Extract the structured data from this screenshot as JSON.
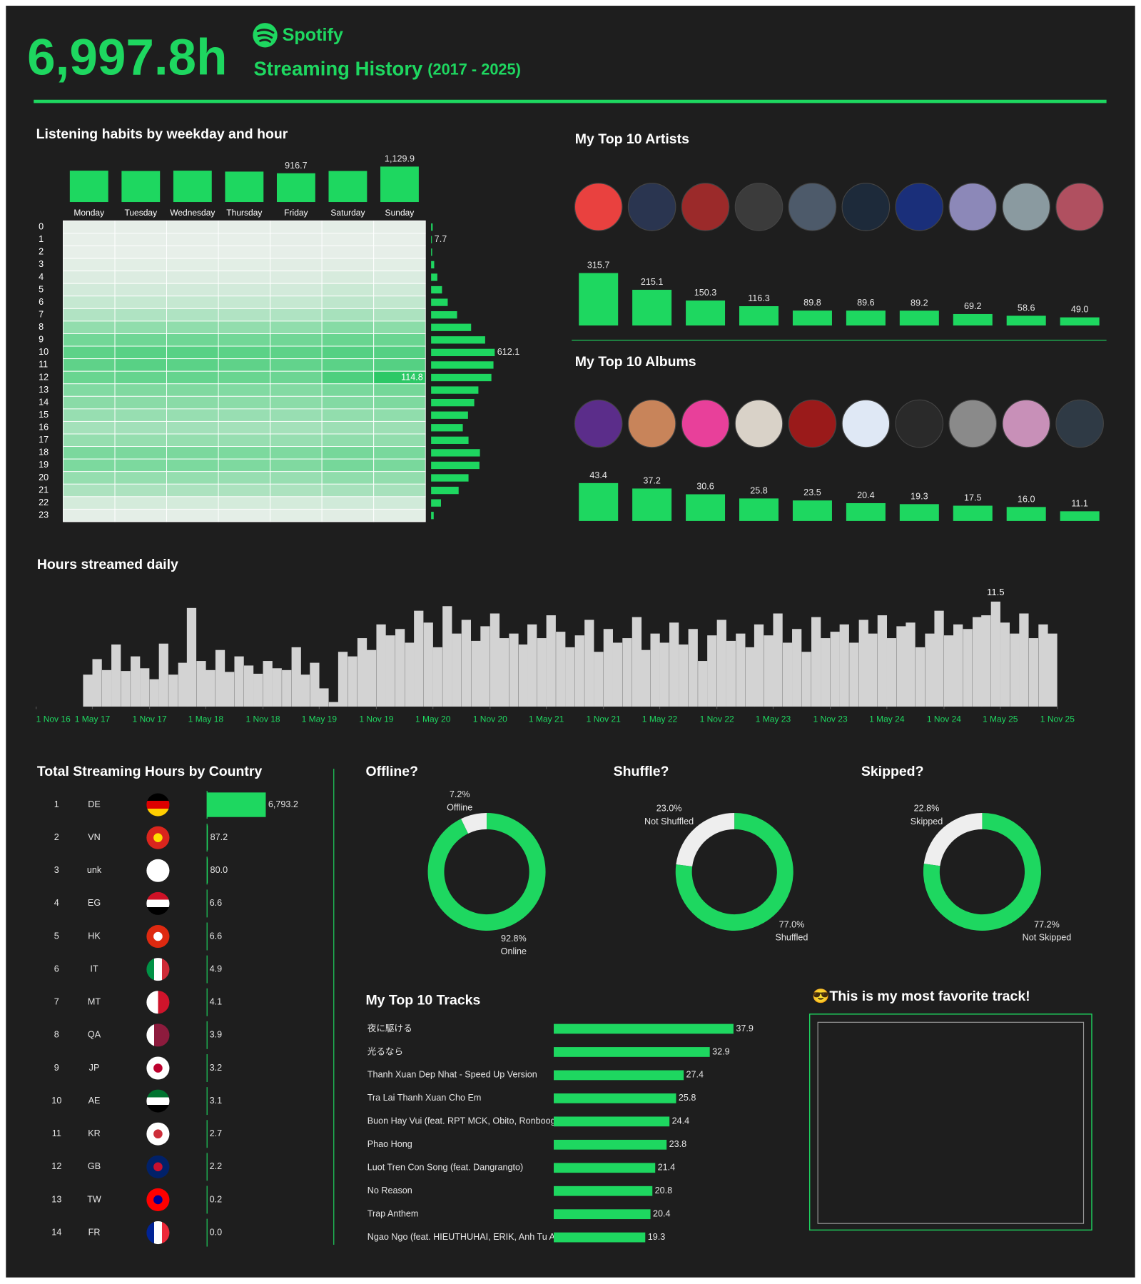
{
  "header": {
    "total": "6,997.8h",
    "brand": "Spotify",
    "title": "Streaming History",
    "period": "(2017 - 2025)"
  },
  "favorite": {
    "title": "😎This is my most favorite track!"
  },
  "chart_data": [
    {
      "type": "bar",
      "title": "Listening habits by weekday and hour",
      "categories": [
        "Monday",
        "Tuesday",
        "Wednesday",
        "Thursday",
        "Friday",
        "Saturday",
        "Sunday"
      ],
      "values": [
        1000,
        990,
        1000,
        970,
        916.7,
        990,
        1129.9
      ],
      "value_labels": [
        null,
        null,
        null,
        null,
        "916.7",
        null,
        "1,129.9"
      ],
      "ylim": [
        0,
        1200
      ],
      "color": "#1ed760"
    },
    {
      "type": "heatmap",
      "rows": [
        0,
        1,
        2,
        3,
        4,
        5,
        6,
        7,
        8,
        9,
        10,
        11,
        12,
        13,
        14,
        15,
        16,
        17,
        18,
        19,
        20,
        21,
        22,
        23
      ],
      "values": [
        [
          2,
          2,
          2,
          2,
          2,
          3,
          2
        ],
        [
          1,
          1,
          1,
          1,
          1.7,
          1,
          1
        ],
        [
          1,
          1,
          1,
          1,
          2,
          2,
          2
        ],
        [
          4,
          4,
          4,
          4,
          5,
          5,
          4
        ],
        [
          8,
          8,
          8,
          8,
          8,
          11,
          9
        ],
        [
          14,
          14,
          14,
          14,
          14,
          19,
          16
        ],
        [
          22,
          22,
          22,
          22,
          22,
          26,
          24
        ],
        [
          34,
          35,
          35,
          34,
          35,
          40,
          37
        ],
        [
          53,
          54,
          54,
          53,
          54,
          60,
          57
        ],
        [
          72,
          74,
          74,
          72,
          73,
          78,
          77
        ],
        [
          85,
          88,
          88,
          86,
          85,
          90,
          90
        ],
        [
          84,
          88,
          86,
          84,
          82,
          86,
          90
        ],
        [
          78,
          80,
          80,
          78,
          76,
          94,
          114.8
        ],
        [
          63,
          64,
          64,
          63,
          62,
          68,
          71
        ],
        [
          58,
          58,
          58,
          57,
          57,
          62,
          65
        ],
        [
          50,
          50,
          50,
          49,
          49,
          53,
          54
        ],
        [
          42,
          43,
          43,
          42,
          42,
          46,
          47
        ],
        [
          51,
          51,
          51,
          50,
          50,
          54,
          53
        ],
        [
          67,
          67,
          67,
          66,
          65,
          70,
          68
        ],
        [
          66,
          66,
          66,
          65,
          64,
          70,
          68
        ],
        [
          51,
          51,
          51,
          50,
          50,
          54,
          53
        ],
        [
          37,
          37,
          37,
          37,
          37,
          40,
          40
        ],
        [
          13,
          13,
          13,
          13,
          13,
          15,
          15
        ],
        [
          3,
          3,
          3,
          3,
          4,
          5,
          4
        ]
      ],
      "value_labels": [
        [
          null,
          null,
          null,
          null,
          null,
          null,
          null
        ],
        [
          null,
          null,
          null,
          null,
          null,
          null,
          null
        ],
        [
          null,
          null,
          null,
          null,
          null,
          null,
          null
        ],
        [
          null,
          null,
          null,
          null,
          null,
          null,
          null
        ],
        [
          null,
          null,
          null,
          null,
          null,
          null,
          null
        ],
        [
          null,
          null,
          null,
          null,
          null,
          null,
          null
        ],
        [
          null,
          null,
          null,
          null,
          null,
          null,
          null
        ],
        [
          null,
          null,
          null,
          null,
          null,
          null,
          null
        ],
        [
          null,
          null,
          null,
          null,
          null,
          null,
          null
        ],
        [
          null,
          null,
          null,
          null,
          null,
          null,
          null
        ],
        [
          null,
          null,
          null,
          null,
          null,
          null,
          null
        ],
        [
          null,
          null,
          null,
          null,
          null,
          null,
          null
        ],
        [
          null,
          null,
          null,
          null,
          null,
          null,
          "114.8"
        ],
        [
          null,
          null,
          null,
          null,
          null,
          null,
          null
        ],
        [
          null,
          null,
          null,
          null,
          null,
          null,
          null
        ],
        [
          null,
          null,
          null,
          null,
          null,
          null,
          null
        ],
        [
          null,
          null,
          null,
          null,
          null,
          null,
          null
        ],
        [
          null,
          null,
          null,
          null,
          null,
          null,
          null
        ],
        [
          null,
          null,
          null,
          null,
          null,
          null,
          null
        ],
        [
          null,
          null,
          null,
          null,
          null,
          null,
          null
        ],
        [
          null,
          null,
          null,
          null,
          null,
          null,
          null
        ],
        [
          null,
          null,
          null,
          null,
          null,
          null,
          null
        ],
        [
          null,
          null,
          null,
          null,
          null,
          null,
          null
        ],
        [
          null,
          null,
          null,
          null,
          null,
          null,
          null
        ]
      ],
      "colors": [
        "#e9efea",
        "#2cc866"
      ]
    },
    {
      "type": "barh",
      "values": [
        15,
        7.7,
        10,
        30,
        60,
        105,
        160,
        250,
        385,
        520,
        612.1,
        600,
        580,
        455,
        415,
        355,
        305,
        360,
        470,
        465,
        360,
        265,
        95,
        25
      ],
      "value_labels": [
        null,
        "7.7",
        null,
        null,
        null,
        null,
        null,
        null,
        null,
        null,
        "612.1",
        null,
        null,
        null,
        null,
        null,
        null,
        null,
        null,
        null,
        null,
        null,
        null,
        null
      ],
      "xlim": [
        0,
        700
      ],
      "color": "#1ed760"
    },
    {
      "type": "bar",
      "title": "My Top 10 Artists",
      "values": [
        315.7,
        215.1,
        150.3,
        116.3,
        89.8,
        89.6,
        89.2,
        69.2,
        58.6,
        49
      ],
      "value_labels": [
        "315.7",
        "215.1",
        "150.3",
        "116.3",
        "89.8",
        "89.6",
        "89.2",
        "69.2",
        "58.6",
        "49.0"
      ],
      "ylim": [
        0,
        330
      ],
      "color": "#1ed760"
    },
    {
      "type": "bar",
      "title": "My Top 10 Albums",
      "values": [
        43.4,
        37.2,
        30.6,
        25.8,
        23.5,
        20.4,
        19.3,
        17.5,
        16,
        11.1
      ],
      "value_labels": [
        "43.4",
        "37.2",
        "30.6",
        "25.8",
        "23.5",
        "20.4",
        "19.3",
        "17.5",
        "16.0",
        "11.1"
      ],
      "ylim": [
        0,
        45
      ],
      "color": "#1ed760"
    },
    {
      "type": "column",
      "title": "Hours streamed daily",
      "x": [
        "2017-04-01",
        "2017-05-01",
        "2017-06-01",
        "2017-07-01",
        "2017-08-01",
        "2017-09-01",
        "2017-10-01",
        "2017-11-01",
        "2017-12-01",
        "2018-01-01",
        "2018-02-01",
        "2018-03-01",
        "2018-04-01",
        "2018-05-01",
        "2018-06-01",
        "2018-07-01",
        "2018-08-01",
        "2018-09-01",
        "2018-10-01",
        "2018-11-01",
        "2018-12-01",
        "2019-01-01",
        "2019-02-01",
        "2019-03-01",
        "2019-04-01",
        "2019-05-01",
        "2019-06-01",
        "2019-07-01",
        "2019-08-01",
        "2019-09-01",
        "2019-10-01",
        "2019-11-01",
        "2019-12-01",
        "2020-01-01",
        "2020-02-01",
        "2020-03-01",
        "2020-04-01",
        "2020-05-01",
        "2020-06-01",
        "2020-07-01",
        "2020-08-01",
        "2020-09-01",
        "2020-10-01",
        "2020-11-01",
        "2020-12-01",
        "2021-01-01",
        "2021-02-01",
        "2021-03-01",
        "2021-04-01",
        "2021-05-01",
        "2021-06-01",
        "2021-07-01",
        "2021-08-01",
        "2021-09-01",
        "2021-10-01",
        "2021-11-01",
        "2021-12-01",
        "2022-01-01",
        "2022-02-01",
        "2022-03-01",
        "2022-04-01",
        "2022-05-01",
        "2022-06-01",
        "2022-07-01",
        "2022-08-01",
        "2022-09-01",
        "2022-10-01",
        "2022-11-01",
        "2022-12-01",
        "2023-01-01",
        "2023-02-01",
        "2023-03-01",
        "2023-04-01",
        "2023-05-01",
        "2023-06-01",
        "2023-07-01",
        "2023-08-01",
        "2023-09-01",
        "2023-10-01",
        "2023-11-01",
        "2023-12-01",
        "2024-01-01",
        "2024-02-01",
        "2024-03-01",
        "2024-04-01",
        "2024-05-01",
        "2024-06-01",
        "2024-07-01",
        "2024-08-01",
        "2024-09-01",
        "2024-10-01",
        "2024-11-01",
        "2024-12-01",
        "2025-01-01",
        "2025-02-01",
        "2025-03-01",
        "2025-04-01",
        "2025-05-01",
        "2025-06-01",
        "2025-07-01",
        "2025-08-01",
        "2025-09-01",
        "2025-10-01"
      ],
      "values": [
        3.5,
        5.2,
        4.0,
        6.8,
        3.9,
        5.5,
        4.2,
        3.0,
        6.9,
        3.5,
        4.8,
        10.8,
        5.0,
        4.0,
        6.2,
        3.8,
        5.5,
        4.5,
        3.6,
        5.0,
        4.2,
        4.0,
        6.5,
        3.5,
        4.8,
        2.0,
        0.5,
        6.0,
        5.5,
        7.5,
        6.2,
        9.0,
        7.8,
        8.5,
        7.0,
        10.5,
        9.2,
        6.5,
        11.0,
        8.0,
        9.5,
        7.2,
        8.8,
        10.2,
        7.5,
        8.0,
        6.8,
        9.0,
        7.5,
        10.0,
        8.2,
        6.5,
        7.8,
        9.5,
        6.0,
        8.5,
        7.0,
        7.5,
        9.8,
        6.2,
        8.0,
        7.0,
        9.2,
        6.8,
        8.5,
        5.0,
        7.8,
        9.5,
        7.2,
        8.0,
        6.5,
        9.0,
        7.8,
        10.2,
        7.0,
        8.5,
        6.0,
        9.8,
        7.5,
        8.2,
        9.0,
        7.0,
        9.5,
        8.0,
        10.0,
        7.5,
        8.8,
        9.2,
        6.5,
        8.0,
        10.5,
        7.8,
        9.0,
        8.5,
        9.8,
        10.0,
        11.5,
        9.2,
        8.0,
        10.2,
        7.5,
        9.0,
        8.0
      ],
      "xlim": [
        "2016-11-01",
        "2025-11-01"
      ],
      "ylim": [
        0,
        12
      ],
      "xticks": [
        {
          "value": "2016-11-01",
          "label": "1 Nov 16"
        },
        {
          "value": "2017-05-01",
          "label": "1 May 17"
        },
        {
          "value": "2017-11-01",
          "label": "1 Nov 17"
        },
        {
          "value": "2018-05-01",
          "label": "1 May 18"
        },
        {
          "value": "2018-11-01",
          "label": "1 Nov 18"
        },
        {
          "value": "2019-05-01",
          "label": "1 May 19"
        },
        {
          "value": "2019-11-01",
          "label": "1 Nov 19"
        },
        {
          "value": "2020-05-01",
          "label": "1 May 20"
        },
        {
          "value": "2020-11-01",
          "label": "1 Nov 20"
        },
        {
          "value": "2021-05-01",
          "label": "1 May 21"
        },
        {
          "value": "2021-11-01",
          "label": "1 Nov 21"
        },
        {
          "value": "2022-05-01",
          "label": "1 May 22"
        },
        {
          "value": "2022-11-01",
          "label": "1 Nov 22"
        },
        {
          "value": "2023-05-01",
          "label": "1 May 23"
        },
        {
          "value": "2023-11-01",
          "label": "1 Nov 23"
        },
        {
          "value": "2024-05-01",
          "label": "1 May 24"
        },
        {
          "value": "2024-11-01",
          "label": "1 Nov 24"
        },
        {
          "value": "2025-05-01",
          "label": "1 May 25"
        },
        {
          "value": "2025-11-01",
          "label": "1 Nov 25"
        }
      ],
      "color": "#d3d3d3",
      "tick_color": "#1ed760"
    },
    {
      "type": "barh",
      "title": "Total Streaming Hours by Country",
      "ranks": [
        1,
        2,
        3,
        4,
        5,
        6,
        7,
        8,
        9,
        10,
        11,
        12,
        13,
        14
      ],
      "categories": [
        "DE",
        "VN",
        "unk",
        "EG",
        "HK",
        "IT",
        "MT",
        "QA",
        "JP",
        "AE",
        "KR",
        "GB",
        "TW",
        "FR"
      ],
      "values": [
        6793.2,
        87.2,
        80,
        6.6,
        6.6,
        4.9,
        4.1,
        3.9,
        3.2,
        3.1,
        2.7,
        2.2,
        0.2,
        0
      ],
      "value_labels": [
        "6,793.2",
        "87.2",
        "80.0",
        "6.6",
        "6.6",
        "4.9",
        "4.1",
        "3.9",
        "3.2",
        "3.1",
        "2.7",
        "2.2",
        "0.2",
        "0.0"
      ],
      "xlim": [
        0,
        7000
      ],
      "color": "#1ed760"
    },
    {
      "type": "donut",
      "title": "Offline?",
      "categories": [
        "Offline",
        "Online"
      ],
      "values": [
        7.2,
        92.8
      ],
      "value_labels": [
        "7.2%",
        "92.8%"
      ],
      "colors": [
        "#eeeeee",
        "#1ed760"
      ]
    },
    {
      "type": "donut",
      "title": "Shuffle?",
      "categories": [
        "Not Shuffled",
        "Shuffled"
      ],
      "values": [
        23,
        77
      ],
      "value_labels": [
        "23.0%",
        "77.0%"
      ],
      "colors": [
        "#eeeeee",
        "#1ed760"
      ]
    },
    {
      "type": "donut",
      "title": "Skipped?",
      "categories": [
        "Skipped",
        "Not Skipped"
      ],
      "values": [
        22.8,
        77.2
      ],
      "value_labels": [
        "22.8%",
        "77.2%"
      ],
      "colors": [
        "#eeeeee",
        "#1ed760"
      ]
    },
    {
      "type": "barh",
      "title": "My Top 10 Tracks",
      "categories": [
        "夜に駆ける",
        "光るなら",
        "Thanh Xuan Dep Nhat - Speed Up Version",
        "Tra Lai Thanh Xuan Cho Em",
        "Buon Hay Vui (feat. RPT MCK, Obito, Ronboog..",
        "Phao Hong",
        "Luot Tren Con Song (feat. Dangrangto)",
        "No Reason",
        "Trap Anthem",
        "Ngao Ngo (feat. HIEUTHUHAI, ERIK, Anh Tu A.."
      ],
      "values": [
        37.9,
        32.9,
        27.4,
        25.8,
        24.4,
        23.8,
        21.4,
        20.8,
        20.4,
        19.3
      ],
      "xlim": [
        0,
        40
      ],
      "color": "#1ed760"
    }
  ]
}
